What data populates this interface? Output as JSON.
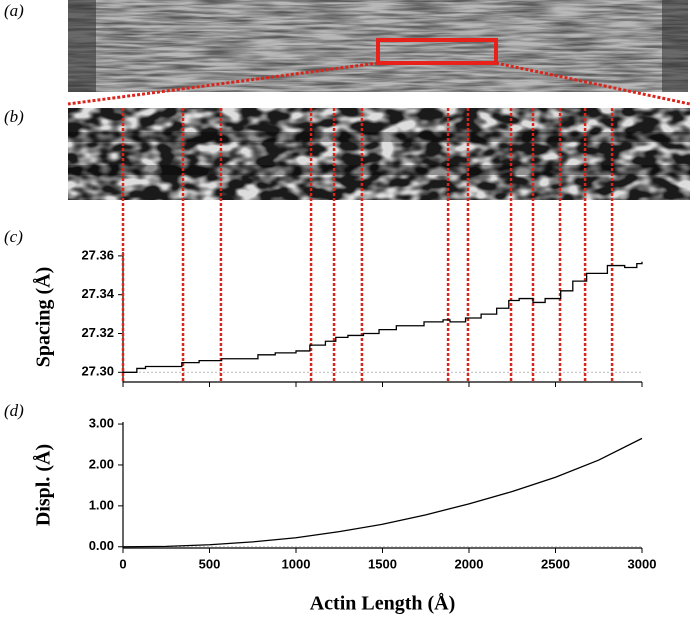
{
  "panel_labels": [
    "(a)",
    "(b)",
    "(c)",
    "(d)"
  ],
  "chart_data": [
    {
      "type": "step",
      "y_label": "Spacing (Å)",
      "x": [
        0,
        80,
        130,
        340,
        440,
        570,
        780,
        880,
        1000,
        1080,
        1170,
        1230,
        1300,
        1390,
        1480,
        1580,
        1740,
        1850,
        1890,
        1980,
        2070,
        2160,
        2230,
        2290,
        2370,
        2440,
        2530,
        2600,
        2680,
        2800,
        2900,
        2970,
        3000
      ],
      "values": [
        27.3,
        27.302,
        27.303,
        27.305,
        27.306,
        27.307,
        27.309,
        27.31,
        27.311,
        27.314,
        27.316,
        27.318,
        27.319,
        27.32,
        27.322,
        27.324,
        27.326,
        27.327,
        27.326,
        27.328,
        27.33,
        27.333,
        27.337,
        27.338,
        27.336,
        27.338,
        27.342,
        27.347,
        27.351,
        27.355,
        27.354,
        27.356,
        27.357
      ],
      "color": "#000000",
      "reference_lines": [
        0,
        347,
        566,
        1087,
        1220,
        1381,
        1879,
        1994,
        2243,
        2370,
        2526,
        2671,
        2827
      ],
      "reference_color": "#d9261c",
      "xlim": [
        0,
        3000
      ],
      "xticks": [
        0,
        500,
        1000,
        1500,
        2000,
        2500,
        3000
      ],
      "ylim": [
        27.295,
        27.362
      ],
      "yticks": [
        {
          "value": 27.3,
          "label": "27.30"
        },
        {
          "value": 27.32,
          "label": "27.32"
        },
        {
          "value": 27.34,
          "label": "27.34"
        },
        {
          "value": 27.36,
          "label": "27.36"
        }
      ]
    },
    {
      "type": "line",
      "y_label": "Displ. (Å)",
      "x_label": "Actin Length (Å)",
      "x": [
        0,
        250,
        500,
        750,
        1000,
        1250,
        1500,
        1750,
        2000,
        2250,
        2500,
        2750,
        3000
      ],
      "values": [
        0,
        0.01,
        0.05,
        0.12,
        0.22,
        0.37,
        0.55,
        0.78,
        1.05,
        1.35,
        1.7,
        2.12,
        2.65
      ],
      "color": "#000000",
      "xlim": [
        0,
        3000
      ],
      "xticks": [
        0,
        500,
        1000,
        1500,
        2000,
        2500,
        3000
      ],
      "ylim": [
        -0.03,
        3.05
      ],
      "yticks": [
        {
          "value": 0,
          "label": "0.00"
        },
        {
          "value": 1,
          "label": "1.00"
        },
        {
          "value": 2,
          "label": "2.00"
        },
        {
          "value": 3,
          "label": "3.00"
        }
      ]
    }
  ]
}
